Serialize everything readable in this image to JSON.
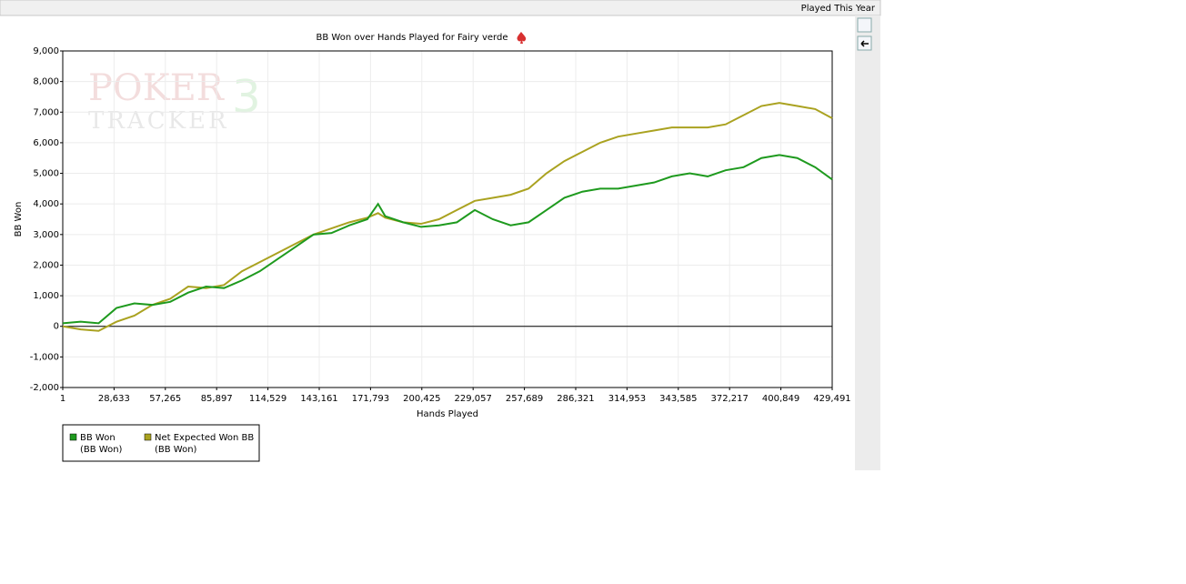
{
  "header": {
    "label": "Played This Year"
  },
  "chart_data": {
    "type": "line",
    "title": "BB Won over Hands Played for Fairy verde",
    "watermark": {
      "line1": "POKER",
      "line2": "TRACKER",
      "number": "3"
    },
    "x_label": "Hands Played",
    "y_label": "BB Won",
    "xlim": [
      1,
      429491
    ],
    "ylim": [
      -2000,
      9000
    ],
    "xticks": [
      1,
      {
        "value": 28633,
        "label": "28,633"
      },
      {
        "value": 57265,
        "label": "57,265"
      },
      {
        "value": 85897,
        "label": "85,897"
      },
      {
        "value": 114529,
        "label": "114,529"
      },
      {
        "value": 143161,
        "label": "143,161"
      },
      {
        "value": 171793,
        "label": "171,793"
      },
      {
        "value": 200425,
        "label": "200,425"
      },
      {
        "value": 229057,
        "label": "229,057"
      },
      {
        "value": 257689,
        "label": "257,689"
      },
      {
        "value": 286321,
        "label": "286,321"
      },
      {
        "value": 314953,
        "label": "314,953"
      },
      {
        "value": 343585,
        "label": "343,585"
      },
      {
        "value": 372217,
        "label": "372,217"
      },
      {
        "value": 400849,
        "label": "400,849"
      },
      {
        "value": 429491,
        "label": "429,491"
      }
    ],
    "yticks": [
      {
        "value": -2000,
        "label": "-2,000"
      },
      {
        "value": -1000,
        "label": "-1,000"
      },
      0,
      {
        "value": 1000,
        "label": "1,000"
      },
      {
        "value": 2000,
        "label": "2,000"
      },
      {
        "value": 3000,
        "label": "3,000"
      },
      {
        "value": 4000,
        "label": "4,000"
      },
      {
        "value": 5000,
        "label": "5,000"
      },
      {
        "value": 6000,
        "label": "6,000"
      },
      {
        "value": 7000,
        "label": "7,000"
      },
      {
        "value": 8000,
        "label": "8,000"
      },
      {
        "value": 9000,
        "label": "9,000"
      }
    ],
    "grid": true,
    "x": [
      1,
      10000,
      20000,
      30000,
      40000,
      50000,
      60000,
      70000,
      80000,
      90000,
      100000,
      110000,
      120000,
      130000,
      140000,
      150000,
      160000,
      170000,
      176000,
      180000,
      190000,
      200000,
      210000,
      220000,
      230000,
      240000,
      250000,
      260000,
      270000,
      280000,
      290000,
      300000,
      310000,
      320000,
      330000,
      340000,
      350000,
      360000,
      370000,
      380000,
      390000,
      400000,
      410000,
      420000,
      429491
    ],
    "series": [
      {
        "name": "BB Won",
        "legend_sublabel": "(BB Won)",
        "color": "#1e9a1e",
        "values": [
          100,
          150,
          100,
          600,
          750,
          700,
          800,
          1100,
          1300,
          1250,
          1500,
          1800,
          2200,
          2600,
          3000,
          3050,
          3300,
          3500,
          4000,
          3600,
          3400,
          3250,
          3300,
          3400,
          3800,
          3500,
          3300,
          3400,
          3800,
          4200,
          4400,
          4500,
          4500,
          4600,
          4700,
          4900,
          5000,
          4900,
          5100,
          5200,
          5500,
          5600,
          5500,
          5200,
          4800
        ]
      },
      {
        "name": "Net Expected Won BB",
        "legend_sublabel": "(BB Won)",
        "color": "#aaa220",
        "values": [
          0,
          -100,
          -150,
          150,
          350,
          700,
          900,
          1300,
          1250,
          1350,
          1800,
          2100,
          2400,
          2700,
          3000,
          3200,
          3400,
          3550,
          3700,
          3550,
          3400,
          3350,
          3500,
          3800,
          4100,
          4200,
          4300,
          4500,
          5000,
          5400,
          5700,
          6000,
          6200,
          6300,
          6400,
          6500,
          6500,
          6500,
          6600,
          6900,
          7200,
          7300,
          7200,
          7100,
          6800
        ]
      }
    ]
  }
}
